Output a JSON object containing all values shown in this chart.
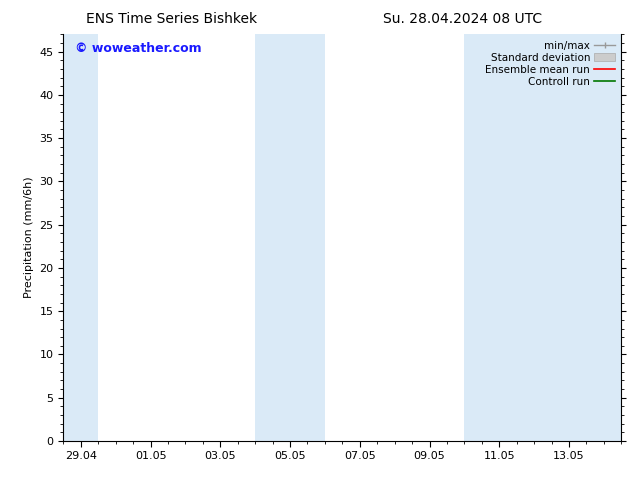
{
  "title_left": "ENS Time Series Bishkek",
  "title_right": "Su. 28.04.2024 08 UTC",
  "ylabel": "Precipitation (mm/6h)",
  "watermark": "© woweather.com",
  "watermark_color": "#1a1aff",
  "ylim": [
    0,
    47
  ],
  "yticks": [
    0,
    5,
    10,
    15,
    20,
    25,
    30,
    35,
    40,
    45
  ],
  "xtick_labels": [
    "29.04",
    "01.05",
    "03.05",
    "05.05",
    "07.05",
    "09.05",
    "11.05",
    "13.05"
  ],
  "xtick_positions": [
    0.5,
    2.5,
    4.5,
    6.5,
    8.5,
    10.5,
    12.5,
    14.5
  ],
  "xmin": 0,
  "xmax": 16,
  "shaded_bands": [
    {
      "x_start": 0,
      "x_end": 1.0
    },
    {
      "x_start": 5.5,
      "x_end": 7.5
    },
    {
      "x_start": 11.5,
      "x_end": 16
    }
  ],
  "shaded_color": "#daeaf7",
  "legend_entries": [
    {
      "label": "min/max",
      "type": "errorbar",
      "color": "#999999"
    },
    {
      "label": "Standard deviation",
      "type": "box",
      "facecolor": "#cccccc",
      "edgecolor": "#aaaaaa"
    },
    {
      "label": "Ensemble mean run",
      "type": "line",
      "color": "#ff0000"
    },
    {
      "label": "Controll run",
      "type": "line",
      "color": "#007700"
    }
  ],
  "background_color": "#ffffff",
  "plot_bg_color": "#ffffff",
  "font_size_title": 10,
  "font_size_labels": 8,
  "font_size_watermark": 9,
  "font_size_legend": 7.5
}
